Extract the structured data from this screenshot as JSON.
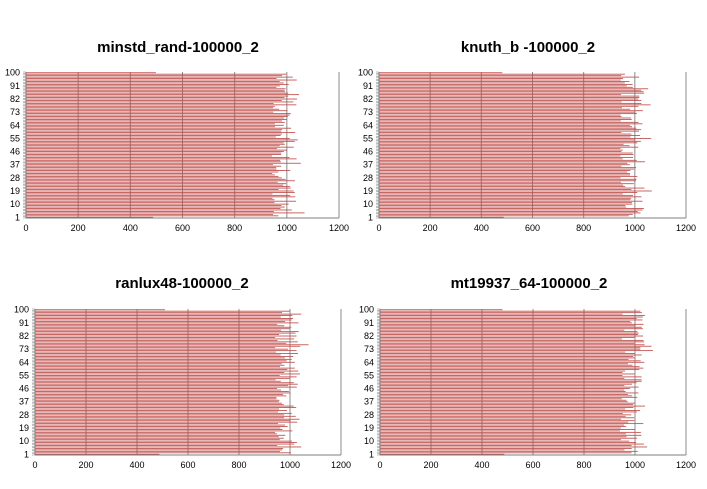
{
  "chart_data": [
    {
      "type": "bar",
      "orientation": "horizontal",
      "title": "minstd_rand-100000_2",
      "xlim": [
        0,
        1200
      ],
      "x_ticks": [
        "0",
        "200",
        "400",
        "600",
        "800",
        "1000",
        "1200"
      ],
      "y_ticks": [
        "1",
        "10",
        "19",
        "28",
        "37",
        "46",
        "55",
        "64",
        "73",
        "82",
        "91",
        "100"
      ],
      "categories_count": 100,
      "grid": "vertical",
      "bar_color": "#c0504d",
      "seed": 11
    },
    {
      "type": "bar",
      "orientation": "horizontal",
      "title": "knuth_b -100000_2",
      "xlim": [
        0,
        1200
      ],
      "x_ticks": [
        "0",
        "200",
        "400",
        "600",
        "800",
        "1000",
        "1200"
      ],
      "y_ticks": [
        "1",
        "10",
        "19",
        "28",
        "37",
        "46",
        "55",
        "64",
        "73",
        "82",
        "91",
        "100"
      ],
      "categories_count": 100,
      "grid": "vertical",
      "bar_color": "#c0504d",
      "seed": 23
    },
    {
      "type": "bar",
      "orientation": "horizontal",
      "title": "ranlux48-100000_2",
      "xlim": [
        0,
        1200
      ],
      "x_ticks": [
        "0",
        "200",
        "400",
        "600",
        "800",
        "1000",
        "1200"
      ],
      "y_ticks": [
        "1",
        "10",
        "19",
        "28",
        "37",
        "46",
        "55",
        "64",
        "73",
        "82",
        "91",
        "100"
      ],
      "categories_count": 100,
      "grid": "vertical",
      "bar_color": "#c0504d",
      "seed": 37
    },
    {
      "type": "bar",
      "orientation": "horizontal",
      "title": "mt19937_64-100000_2",
      "xlim": [
        0,
        1200
      ],
      "x_ticks": [
        "0",
        "200",
        "400",
        "600",
        "800",
        "1000",
        "1200"
      ],
      "y_ticks": [
        "1",
        "10",
        "19",
        "28",
        "37",
        "46",
        "55",
        "64",
        "73",
        "82",
        "91",
        "100"
      ],
      "categories_count": 100,
      "grid": "vertical",
      "bar_color": "#c0504d",
      "seed": 53
    }
  ]
}
